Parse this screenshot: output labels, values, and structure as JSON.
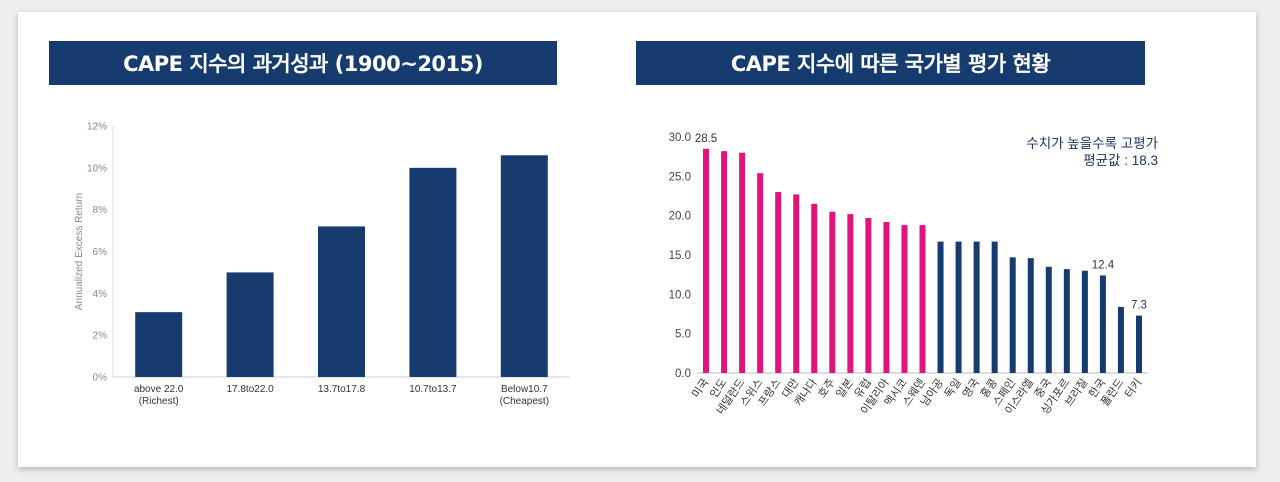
{
  "colors": {
    "navy": "#163b6e",
    "magenta": "#e0147a",
    "axis": "#666666",
    "banner_text": "#ffffff"
  },
  "chart_data": [
    {
      "type": "bar",
      "title": "CAPE 지수의 과거성과 (1900~2015)",
      "categories": [
        [
          "above 22.0",
          "(Richest)"
        ],
        [
          "17.8to22.0"
        ],
        [
          "13.7to17.8"
        ],
        [
          "10.7to13.7"
        ],
        [
          "Below10.7",
          "(Cheapest)"
        ]
      ],
      "values": [
        3.1,
        5.0,
        7.2,
        10.0,
        10.6
      ],
      "ylabel": "Annualized Excess Return",
      "xlabel": "",
      "ylim": [
        0,
        12
      ],
      "yticks": [
        "0%",
        "2%",
        "4%",
        "6%",
        "8%",
        "10%",
        "12%"
      ],
      "grid": false,
      "bar_color": "#163b6e"
    },
    {
      "type": "bar",
      "title": "CAPE 지수에 따른 국가별 평가 현황",
      "categories": [
        "미국",
        "인도",
        "네덜란드",
        "스위스",
        "프랑스",
        "대만",
        "캐나다",
        "호주",
        "일본",
        "유럽",
        "이탈리아",
        "멕시코",
        "스웨덴",
        "남아공",
        "독일",
        "영국",
        "홍콩",
        "스페인",
        "이스라엘",
        "중국",
        "싱가포르",
        "브라질",
        "한국",
        "폴란드",
        "터키"
      ],
      "values": [
        28.5,
        28.2,
        28.0,
        25.4,
        23.0,
        22.7,
        21.5,
        20.5,
        20.2,
        19.7,
        19.2,
        18.8,
        18.8,
        16.7,
        16.7,
        16.7,
        16.7,
        14.7,
        14.6,
        13.5,
        13.2,
        13.0,
        12.4,
        8.4,
        7.3
      ],
      "highlight_count": 13,
      "colors": [
        "#e0147a",
        "#163b6e"
      ],
      "data_labels": {
        "0": "28.5",
        "22": "12.4",
        "24": "7.3"
      },
      "ylim": [
        0,
        30
      ],
      "yticks": [
        "0.0",
        "5.0",
        "10.0",
        "15.0",
        "20.0",
        "25.0",
        "30.0"
      ],
      "xlabel": "",
      "ylabel": "",
      "grid": false,
      "annotation": [
        "수치가 높을수록 고평가",
        "평균값 : 18.3"
      ]
    }
  ]
}
